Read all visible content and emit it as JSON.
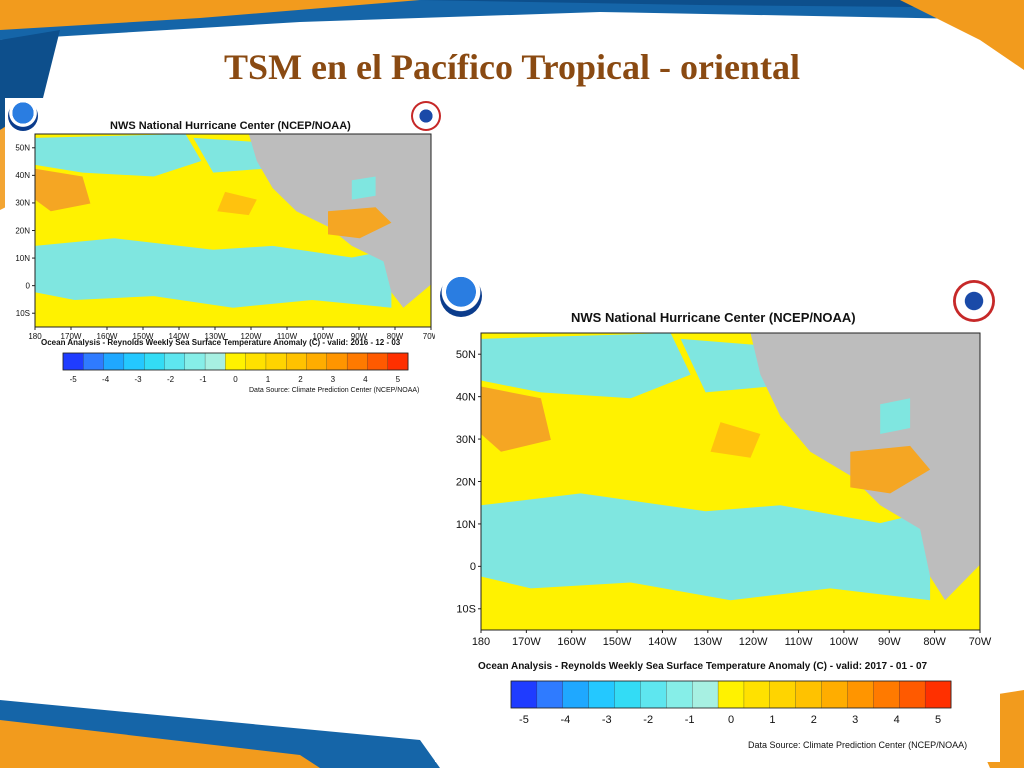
{
  "slide": {
    "title": "TSM en el Pacífico Tropical - oriental"
  },
  "map_small": {
    "header": "NWS National Hurricane Center (NCEP/NOAA)",
    "lat_labels": [
      "50N",
      "40N",
      "30N",
      "20N",
      "10N",
      "0",
      "10S"
    ],
    "lon_labels": [
      "180",
      "170W",
      "160W",
      "150W",
      "140W",
      "130W",
      "120W",
      "110W",
      "100W",
      "90W",
      "80W",
      "70W"
    ],
    "caption": "Ocean Analysis - Reynolds Weekly Sea Surface Temperature Anomaly (C) - valid: 2016 - 12 - 03",
    "colorbar_labels": [
      "-5",
      "-4",
      "-3",
      "-2",
      "-1",
      "0",
      "1",
      "2",
      "3",
      "4",
      "5"
    ],
    "source": "Data Source: Climate Prediction Center (NCEP/NOAA)"
  },
  "map_large": {
    "header": "NWS National Hurricane Center (NCEP/NOAA)",
    "lat_labels": [
      "50N",
      "40N",
      "30N",
      "20N",
      "10N",
      "0",
      "10S"
    ],
    "lon_labels": [
      "180",
      "170W",
      "160W",
      "150W",
      "140W",
      "130W",
      "120W",
      "110W",
      "100W",
      "90W",
      "80W",
      "70W"
    ],
    "caption": "Ocean Analysis - Reynolds Weekly Sea Surface Temperature Anomaly (C) - valid: 2017 - 01 - 07",
    "colorbar_labels": [
      "-5",
      "-4",
      "-3",
      "-2",
      "-1",
      "0",
      "1",
      "2",
      "3",
      "4",
      "5"
    ],
    "source": "Data Source: Climate Prediction Center (NCEP/NOAA)"
  },
  "colors": {
    "title": "#8a4a12",
    "land": "#bdbdbd",
    "cool": "#7fe6e0",
    "neutral": "#fff200",
    "warm": "#ffc20e",
    "warmer": "#f5a623",
    "colorbar": [
      "#1f3cff",
      "#2f7bff",
      "#1fa8ff",
      "#24c8ff",
      "#33dcf5",
      "#5ee6ef",
      "#86eee8",
      "#a7f0e2",
      "#fff200",
      "#ffe100",
      "#ffd400",
      "#ffc200",
      "#ffad00",
      "#ff9500",
      "#ff7a00",
      "#ff5a00",
      "#ff3000"
    ]
  },
  "icons": [
    "noaa-logo",
    "nws-logo"
  ]
}
